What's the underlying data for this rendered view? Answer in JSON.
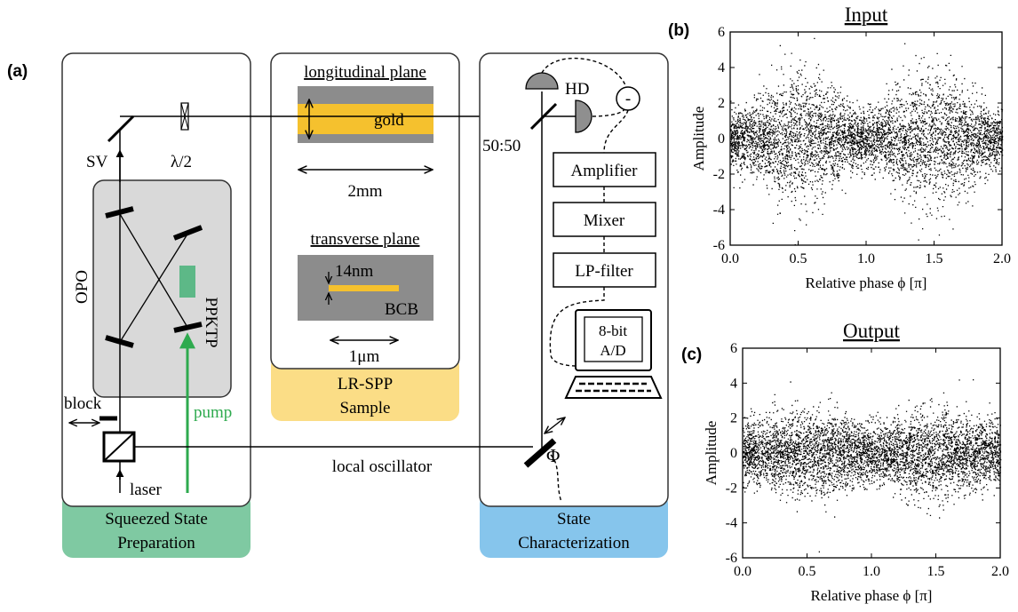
{
  "panel_labels": {
    "a": "(a)",
    "b": "(b)",
    "c": "(c)"
  },
  "colors": {
    "squeezed_footer": "#7fc9a2",
    "lrspp_footer": "#fbdd86",
    "state_footer": "#86c5ec",
    "gold": "#f5c12e",
    "bcb_gray": "#8c8c8c",
    "opo_box": "#d9d9d9",
    "ppktp": "#5db887",
    "pump": "#2eaa4e",
    "mirror_gray": "#8f8f8f"
  },
  "squeezed": {
    "footer": [
      "Squeezed State",
      "Preparation"
    ],
    "sv": "SV",
    "half_wave": "λ/2",
    "opo": "OPO",
    "ppktp": "PPKTP",
    "pump": "pump",
    "block": "block",
    "laser": "laser"
  },
  "lrspp": {
    "footer": [
      "LR-SPP",
      "Sample"
    ],
    "longitudinal_title": "longitudinal plane",
    "gold": "gold",
    "length": "2mm",
    "transverse_title": "transverse plane",
    "thickness": "14nm",
    "bcb": "BCB",
    "width": "1μm"
  },
  "state": {
    "footer": [
      "State",
      "Characterization"
    ],
    "hd": "HD",
    "minus": "-",
    "bs": "50:50",
    "amplifier": "Amplifier",
    "mixer": "Mixer",
    "lp_filter": "LP-filter",
    "adc_line1": "8-bit",
    "adc_line2": "A/D",
    "phase": "Φ"
  },
  "local_oscillator": "local oscillator",
  "chart_data": [
    {
      "type": "scatter",
      "title": "Input",
      "xlabel": "Relative phase ϕ [π]",
      "ylabel": "Amplitude",
      "xlim": [
        0.0,
        2.0
      ],
      "ylim": [
        -6,
        6
      ],
      "xticks": [
        "0.0",
        "0.5",
        "1.0",
        "1.5",
        "2.0"
      ],
      "yticks": [
        "-6",
        "-4",
        "-2",
        "0",
        "2",
        "4",
        "6"
      ],
      "envelope": {
        "sd_min": 0.78,
        "sd_max": 1.85,
        "max_at_phase": [
          0.5,
          1.5
        ],
        "min_at_phase": [
          0.0,
          1.0,
          2.0
        ]
      }
    },
    {
      "type": "scatter",
      "title": "Output",
      "xlabel": "Relative phase ϕ [π]",
      "ylabel": "Amplitude",
      "xlim": [
        0.0,
        2.0
      ],
      "ylim": [
        -6,
        6
      ],
      "xticks": [
        "0.0",
        "0.5",
        "1.0",
        "1.5",
        "2.0"
      ],
      "yticks": [
        "-6",
        "-4",
        "-2",
        "0",
        "2",
        "4",
        "6"
      ],
      "envelope": {
        "sd_min": 0.85,
        "sd_max": 1.2,
        "max_at_phase": [
          0.5,
          1.5
        ],
        "min_at_phase": [
          0.0,
          1.0,
          2.0
        ]
      }
    }
  ]
}
